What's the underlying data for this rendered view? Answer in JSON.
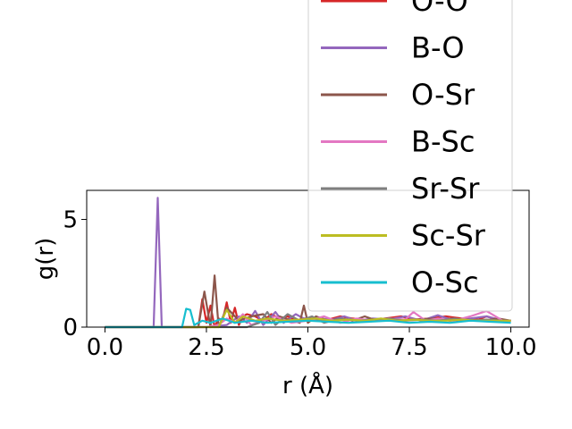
{
  "chart_data": {
    "type": "line",
    "xlabel": "r (Å)",
    "ylabel": "g(r)",
    "xlim": [
      -0.45,
      10.45
    ],
    "ylim": [
      0,
      6.35
    ],
    "xticks": [
      0.0,
      2.5,
      5.0,
      7.5,
      10.0
    ],
    "xtick_labels": [
      "0.0",
      "2.5",
      "5.0",
      "7.5",
      "10.0"
    ],
    "yticks": [
      0,
      5
    ],
    "ytick_labels": [
      "0",
      "5"
    ],
    "grid": false,
    "legend_position": "upper-right (overflowing above axes)",
    "series": [
      {
        "name": "O-O",
        "color": "#d62728",
        "x": [
          0,
          2.3,
          2.4,
          2.5,
          2.6,
          2.7,
          2.8,
          2.9,
          3.0,
          3.1,
          3.2,
          3.3,
          3.4,
          3.5,
          3.7,
          3.9,
          4.1,
          4.3,
          4.5,
          4.7,
          4.9,
          5.1,
          5.4,
          5.8,
          6.1,
          6.5,
          6.9,
          7.3,
          7.6,
          8.0,
          8.4,
          8.8,
          9.2,
          9.4,
          9.7,
          10.0
        ],
        "y": [
          0,
          0,
          1.3,
          0.2,
          1.0,
          0.0,
          0.4,
          0.3,
          1.15,
          0.2,
          0.9,
          0.1,
          0.5,
          0.6,
          0.5,
          0.3,
          0.6,
          0.4,
          0.5,
          0.3,
          0.4,
          0.4,
          0.3,
          0.5,
          0.4,
          0.3,
          0.4,
          0.5,
          0.35,
          0.4,
          0.5,
          0.4,
          0.35,
          0.5,
          0.35,
          0.3
        ]
      },
      {
        "name": "B-O",
        "color": "#9467bd",
        "x": [
          0,
          1.2,
          1.3,
          1.4,
          1.5,
          2.0,
          2.5,
          3.0,
          3.3,
          3.5,
          3.7,
          3.9,
          4.2,
          4.4,
          4.7,
          5.0,
          5.3,
          5.6,
          5.9,
          6.2,
          6.6,
          7.0,
          7.4,
          7.8,
          8.2,
          8.6,
          9.0,
          9.4,
          9.8,
          10.0
        ],
        "y": [
          0,
          0,
          6.0,
          0,
          0,
          0,
          0,
          0.1,
          0.5,
          0.2,
          0.75,
          0.1,
          0.7,
          0.2,
          0.6,
          0.3,
          0.4,
          0.35,
          0.5,
          0.3,
          0.4,
          0.35,
          0.5,
          0.3,
          0.55,
          0.3,
          0.4,
          0.5,
          0.3,
          0.3
        ]
      },
      {
        "name": "O-Sr",
        "color": "#8c564b",
        "x": [
          0,
          2.3,
          2.45,
          2.6,
          2.7,
          2.8,
          3.0,
          3.3,
          3.6,
          3.9,
          4.1,
          4.3,
          4.6,
          4.8,
          4.9,
          5.0,
          5.2,
          5.5,
          5.8,
          6.1,
          6.4,
          6.7,
          7.0,
          7.3,
          7.7,
          8.1,
          8.5,
          8.9,
          9.3,
          9.7,
          10.0
        ],
        "y": [
          0,
          0,
          1.65,
          0,
          2.4,
          0,
          0.9,
          0.3,
          0.5,
          0.6,
          0.2,
          0.5,
          0.3,
          0.2,
          1.0,
          0.2,
          0.5,
          0.3,
          0.4,
          0.3,
          0.5,
          0.3,
          0.4,
          0.3,
          0.35,
          0.4,
          0.3,
          0.35,
          0.3,
          0.4,
          0.3
        ]
      },
      {
        "name": "B-Sc",
        "color": "#e377c2",
        "x": [
          0,
          2.5,
          2.8,
          3.0,
          3.2,
          3.4,
          3.6,
          3.9,
          4.2,
          4.6,
          5.0,
          5.4,
          5.8,
          6.2,
          6.6,
          7.0,
          7.4,
          7.6,
          7.9,
          8.2,
          8.6,
          9.0,
          9.4,
          9.8,
          10.0
        ],
        "y": [
          0,
          0,
          0.1,
          0.4,
          0.2,
          0.6,
          0.1,
          0.3,
          0.5,
          0.2,
          0.3,
          0.5,
          0.2,
          0.4,
          0.3,
          0.4,
          0.35,
          0.7,
          0.3,
          0.4,
          0.3,
          0.5,
          0.75,
          0.3,
          0.3
        ]
      },
      {
        "name": "Sr-Sr",
        "color": "#7f7f7f",
        "x": [
          0,
          3.5,
          3.8,
          4.0,
          4.2,
          4.5,
          4.8,
          5.1,
          5.4,
          5.8,
          6.2,
          6.6,
          7.0,
          7.4,
          7.8,
          8.2,
          8.6,
          9.0,
          9.4,
          9.8,
          10.0
        ],
        "y": [
          0,
          0,
          0.2,
          0.7,
          0.1,
          0.6,
          0.3,
          0.5,
          0.2,
          0.4,
          0.3,
          0.35,
          0.4,
          0.3,
          0.35,
          0.3,
          0.4,
          0.3,
          0.35,
          0.3,
          0.3
        ]
      },
      {
        "name": "Sc-Sr",
        "color": "#bcbd22",
        "x": [
          0,
          2.8,
          3.0,
          3.2,
          3.4,
          3.7,
          4.0,
          4.4,
          4.8,
          5.2,
          5.6,
          6.0,
          6.4,
          6.8,
          7.2,
          7.6,
          8.0,
          8.4,
          8.8,
          9.2,
          9.6,
          10.0
        ],
        "y": [
          0,
          0,
          0.8,
          0.2,
          0.5,
          0.3,
          0.4,
          0.3,
          0.35,
          0.4,
          0.3,
          0.35,
          0.3,
          0.4,
          0.3,
          0.35,
          0.3,
          0.3,
          0.35,
          0.3,
          0.3,
          0.3
        ]
      },
      {
        "name": "O-Sc",
        "color": "#17becf",
        "x": [
          0,
          1.9,
          2.0,
          2.1,
          2.2,
          2.4,
          2.6,
          2.9,
          3.2,
          3.6,
          4.0,
          4.5,
          5.0,
          5.5,
          6.0,
          6.5,
          7.0,
          7.5,
          8.0,
          8.5,
          9.0,
          9.5,
          10.0
        ],
        "y": [
          0,
          0,
          0.85,
          0.8,
          0.1,
          0.3,
          0.2,
          0.4,
          0.2,
          0.3,
          0.2,
          0.25,
          0.3,
          0.25,
          0.2,
          0.25,
          0.3,
          0.2,
          0.25,
          0.2,
          0.3,
          0.25,
          0.2
        ]
      }
    ]
  }
}
